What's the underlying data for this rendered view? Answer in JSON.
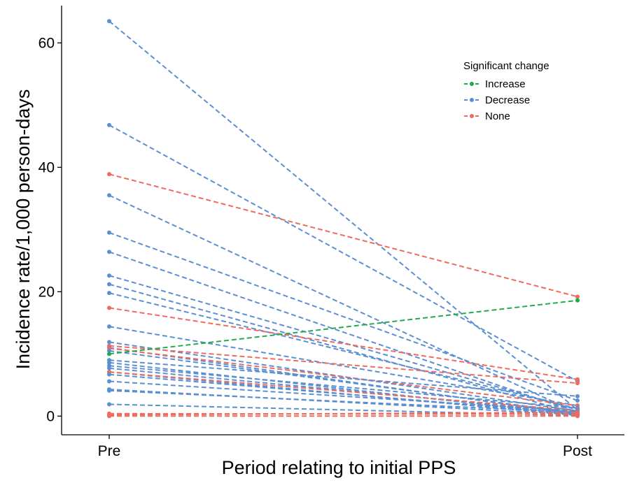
{
  "chart_data": {
    "type": "line",
    "title": "",
    "xlabel": "Period relating to initial PPS",
    "ylabel": "Incidence rate/1,000 person-days",
    "categories": [
      "Pre",
      "Post"
    ],
    "ylim": [
      -3,
      66
    ],
    "yticks": [
      0,
      20,
      40,
      60
    ],
    "grid": false,
    "legend": {
      "title": "Significant change",
      "placement": "top-right",
      "entries": [
        {
          "name": "Increase",
          "color": "#1fab4a"
        },
        {
          "name": "Decrease",
          "color": "#5b8fd1"
        },
        {
          "name": "None",
          "color": "#ef6b5e"
        }
      ]
    },
    "series": [
      {
        "group": "Decrease",
        "values": [
          63.5,
          1.0
        ]
      },
      {
        "group": "Decrease",
        "values": [
          46.8,
          5.6
        ]
      },
      {
        "group": "None",
        "values": [
          38.9,
          19.2
        ]
      },
      {
        "group": "Decrease",
        "values": [
          35.5,
          0.5
        ]
      },
      {
        "group": "Decrease",
        "values": [
          29.5,
          2.5
        ]
      },
      {
        "group": "Decrease",
        "values": [
          26.4,
          0.6
        ]
      },
      {
        "group": "Decrease",
        "values": [
          22.6,
          1.0
        ]
      },
      {
        "group": "Decrease",
        "values": [
          21.2,
          0.4
        ]
      },
      {
        "group": "Decrease",
        "values": [
          19.8,
          1.2
        ]
      },
      {
        "group": "None",
        "values": [
          17.4,
          5.9
        ]
      },
      {
        "group": "Decrease",
        "values": [
          14.4,
          1.7
        ]
      },
      {
        "group": "Decrease",
        "values": [
          11.9,
          0.8
        ]
      },
      {
        "group": "None",
        "values": [
          11.3,
          5.3
        ]
      },
      {
        "group": "Decrease",
        "values": [
          11.0,
          0.3
        ]
      },
      {
        "group": "None",
        "values": [
          10.9,
          1.7
        ]
      },
      {
        "group": "Decrease",
        "values": [
          10.5,
          0.5
        ]
      },
      {
        "group": "Increase",
        "values": [
          10.0,
          18.6
        ]
      },
      {
        "group": "Decrease",
        "values": [
          9.0,
          3.2
        ]
      },
      {
        "group": "Decrease",
        "values": [
          8.6,
          0.2
        ]
      },
      {
        "group": "Decrease",
        "values": [
          8.1,
          1.3
        ]
      },
      {
        "group": "Decrease",
        "values": [
          7.7,
          0.6
        ]
      },
      {
        "group": "Decrease",
        "values": [
          7.1,
          0.1
        ]
      },
      {
        "group": "None",
        "values": [
          7.1,
          0.9
        ]
      },
      {
        "group": "Decrease",
        "values": [
          6.7,
          0.4
        ]
      },
      {
        "group": "Decrease",
        "values": [
          5.6,
          0.8
        ]
      },
      {
        "group": "Decrease",
        "values": [
          4.3,
          0.2
        ]
      },
      {
        "group": "Decrease",
        "values": [
          4.1,
          0.6
        ]
      },
      {
        "group": "Decrease",
        "values": [
          1.9,
          0.1
        ]
      },
      {
        "group": "None",
        "values": [
          0.4,
          0.3
        ]
      },
      {
        "group": "None",
        "values": [
          0.2,
          0.6
        ]
      },
      {
        "group": "None",
        "values": [
          0.0,
          0.0
        ]
      }
    ]
  }
}
